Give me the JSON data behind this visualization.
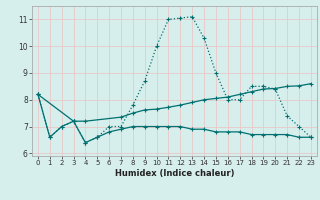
{
  "xlabel": "Humidex (Indice chaleur)",
  "ylabel": "",
  "bg_color": "#d6eeec",
  "grid_color": "#e8c8c8",
  "line_color": "#007070",
  "xlim": [
    -0.5,
    23.5
  ],
  "ylim": [
    5.9,
    11.5
  ],
  "yticks": [
    6,
    7,
    8,
    9,
    10,
    11
  ],
  "xticks": [
    0,
    1,
    2,
    3,
    4,
    5,
    6,
    7,
    8,
    9,
    10,
    11,
    12,
    13,
    14,
    15,
    16,
    17,
    18,
    19,
    20,
    21,
    22,
    23
  ],
  "line1_x": [
    0,
    1,
    2,
    3,
    4,
    5,
    6,
    7,
    8,
    9,
    10,
    11,
    12,
    13,
    14,
    15,
    16,
    17,
    18,
    19,
    20,
    21,
    22,
    23
  ],
  "line1_y": [
    8.2,
    6.6,
    7.0,
    7.2,
    6.4,
    6.6,
    7.0,
    7.0,
    7.8,
    8.7,
    10.0,
    11.0,
    11.05,
    11.1,
    10.3,
    9.0,
    8.0,
    8.0,
    8.5,
    8.5,
    8.4,
    7.4,
    7.0,
    6.6
  ],
  "line2_x": [
    0,
    3,
    4,
    7,
    8,
    9,
    10,
    11,
    12,
    13,
    14,
    15,
    16,
    17,
    18,
    19,
    20,
    21,
    22,
    23
  ],
  "line2_y": [
    8.2,
    7.2,
    7.2,
    7.35,
    7.5,
    7.62,
    7.65,
    7.72,
    7.8,
    7.9,
    8.0,
    8.05,
    8.1,
    8.2,
    8.3,
    8.4,
    8.42,
    8.5,
    8.52,
    8.6
  ],
  "line3_x": [
    0,
    1,
    2,
    3,
    4,
    5,
    6,
    7,
    8,
    9,
    10,
    11,
    12,
    13,
    14,
    15,
    16,
    17,
    18,
    19,
    20,
    21,
    22,
    23
  ],
  "line3_y": [
    8.2,
    6.6,
    7.0,
    7.2,
    6.4,
    6.6,
    6.8,
    6.9,
    7.0,
    7.0,
    7.0,
    7.0,
    7.0,
    6.9,
    6.9,
    6.8,
    6.8,
    6.8,
    6.7,
    6.7,
    6.7,
    6.7,
    6.6,
    6.6
  ]
}
